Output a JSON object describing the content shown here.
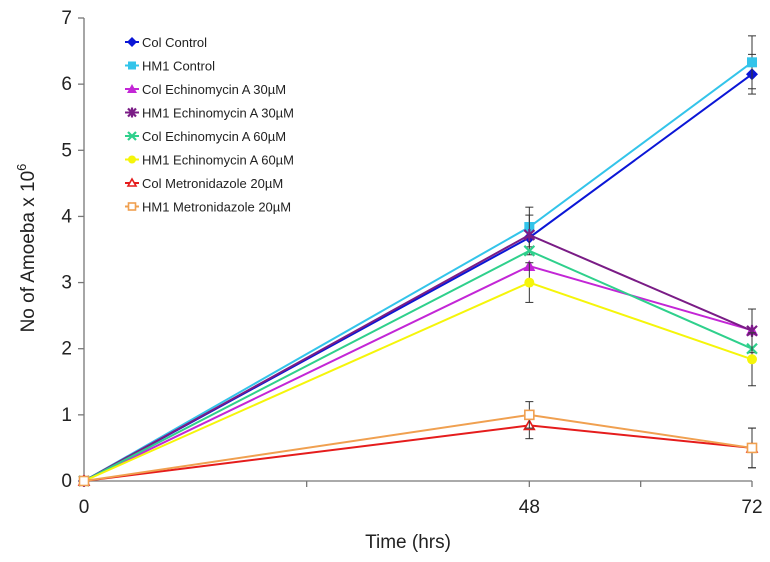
{
  "chart_data": {
    "type": "line",
    "xlabel": "Time (hrs)",
    "ylabel": "No of Amoeba x 10",
    "ylabel_sup": "6",
    "x": [
      0,
      48,
      72
    ],
    "x_tick_labels": [
      "0",
      "48",
      "72"
    ],
    "xlim": [
      0,
      72
    ],
    "ylim": [
      0,
      7
    ],
    "y_ticks": [
      0,
      1,
      2,
      3,
      4,
      5,
      6,
      7
    ],
    "grid": false,
    "legend_position": "top-left",
    "series": [
      {
        "name": "Col Control",
        "color": "#0b16d6",
        "marker": "diamond",
        "values": [
          0,
          3.68,
          6.15
        ],
        "errors": [
          0,
          0,
          0.3
        ]
      },
      {
        "name": "HM1 Control",
        "color": "#33c4ea",
        "marker": "square",
        "values": [
          0,
          3.84,
          6.33
        ],
        "errors": [
          0,
          0.3,
          0.4
        ]
      },
      {
        "name": "Col Echinomycin A 30µM",
        "color": "#c326d6",
        "marker": "triangle",
        "values": [
          0,
          3.25,
          2.28
        ],
        "errors": [
          0,
          0,
          0
        ]
      },
      {
        "name": "HM1 Echinomycin A 30µM",
        "color": "#7a1c86",
        "marker": "star",
        "values": [
          0,
          3.72,
          2.27
        ],
        "errors": [
          0,
          0.3,
          0.33
        ]
      },
      {
        "name": "Col Echinomycin A 60µM",
        "color": "#2fd08c",
        "marker": "asterisk",
        "values": [
          0,
          3.48,
          2.0
        ],
        "errors": [
          0,
          0,
          0
        ]
      },
      {
        "name": "HM1 Echinomycin A 60µM",
        "color": "#f5f50a",
        "marker": "circle",
        "values": [
          0,
          3.0,
          1.84
        ],
        "errors": [
          0,
          0.3,
          0.4
        ]
      },
      {
        "name": "Col Metronidazole 20µM",
        "color": "#e51c1c",
        "marker": "triangle-open",
        "values": [
          0,
          0.84,
          0.5
        ],
        "errors": [
          0,
          0.2,
          0.3
        ]
      },
      {
        "name": "HM1 Metronidazole 20µM",
        "color": "#f0a050",
        "marker": "square-open",
        "values": [
          0,
          1.0,
          0.5
        ],
        "errors": [
          0,
          0.2,
          0.3
        ]
      }
    ]
  }
}
